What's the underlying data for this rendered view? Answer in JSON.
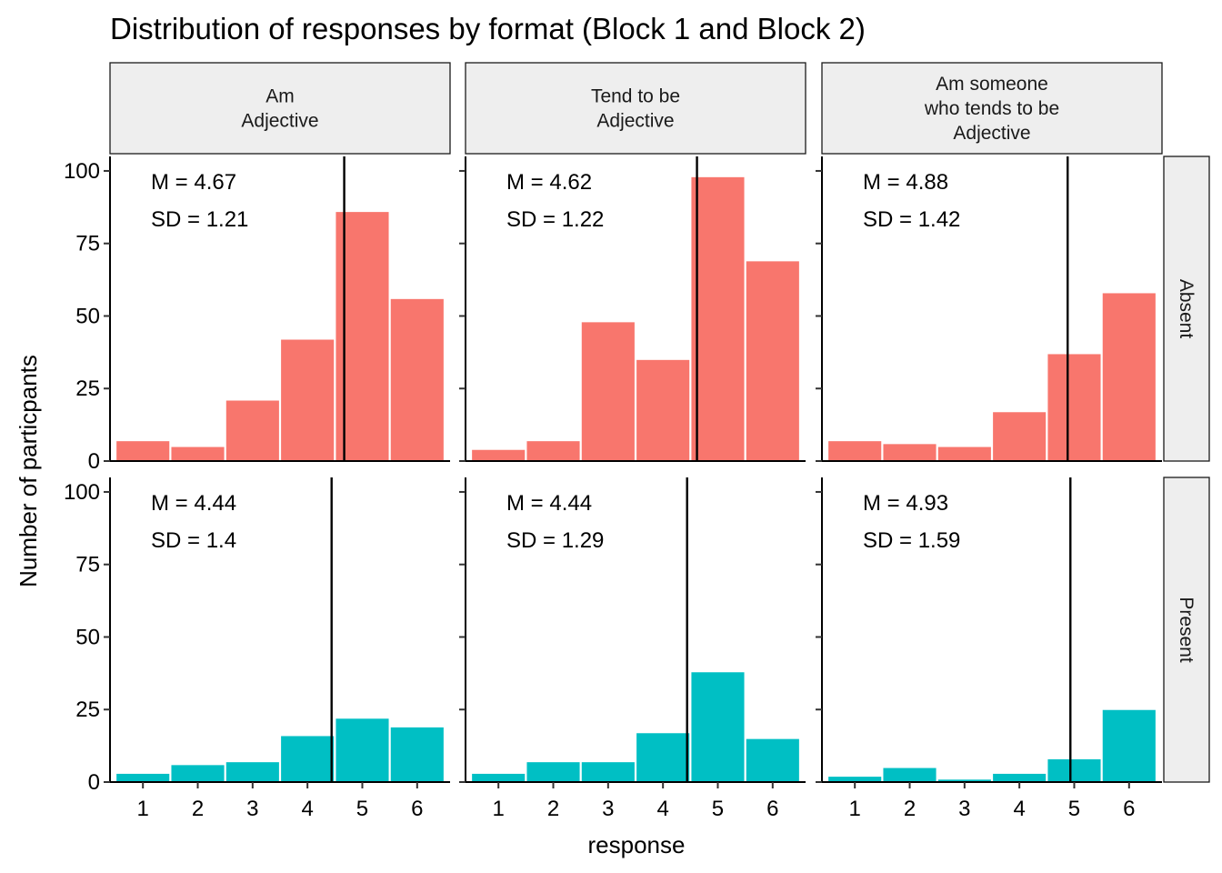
{
  "chart_data": {
    "type": "bar",
    "title": "Distribution of responses by format (Block 1 and Block 2)",
    "xlabel": "response",
    "ylabel": "Number of particpants",
    "categories": [
      1,
      2,
      3,
      4,
      5,
      6
    ],
    "ylim": [
      0,
      105
    ],
    "yticks": [
      0,
      25,
      50,
      75,
      100
    ],
    "grid": false,
    "colors": {
      "Absent": "#F8766D",
      "Present": "#00BFC4"
    },
    "columns": [
      {
        "lines": [
          "Am",
          "Adjective"
        ]
      },
      {
        "lines": [
          "Tend to be",
          "Adjective"
        ]
      },
      {
        "lines": [
          "Am someone",
          "who tends to be",
          "Adjective"
        ]
      }
    ],
    "rows": [
      "Absent",
      "Present"
    ],
    "panels": [
      {
        "row": "Absent",
        "col": 0,
        "values": [
          7,
          5,
          21,
          42,
          86,
          56
        ],
        "mean": 4.67,
        "m_label": "M = 4.67",
        "sd_label": "SD = 1.21"
      },
      {
        "row": "Absent",
        "col": 1,
        "values": [
          4,
          7,
          48,
          35,
          98,
          69
        ],
        "mean": 4.62,
        "m_label": "M = 4.62",
        "sd_label": "SD = 1.22"
      },
      {
        "row": "Absent",
        "col": 2,
        "values": [
          7,
          6,
          5,
          17,
          37,
          58
        ],
        "mean": 4.88,
        "m_label": "M = 4.88",
        "sd_label": "SD = 1.42"
      },
      {
        "row": "Present",
        "col": 0,
        "values": [
          3,
          6,
          7,
          16,
          22,
          19
        ],
        "mean": 4.44,
        "m_label": "M = 4.44",
        "sd_label": "SD = 1.4"
      },
      {
        "row": "Present",
        "col": 1,
        "values": [
          3,
          7,
          7,
          17,
          38,
          15
        ],
        "mean": 4.44,
        "m_label": "M = 4.44",
        "sd_label": "SD = 1.29"
      },
      {
        "row": "Present",
        "col": 2,
        "values": [
          2,
          5,
          1,
          3,
          8,
          25
        ],
        "mean": 4.93,
        "m_label": "M = 4.93",
        "sd_label": "SD = 1.59"
      }
    ]
  }
}
